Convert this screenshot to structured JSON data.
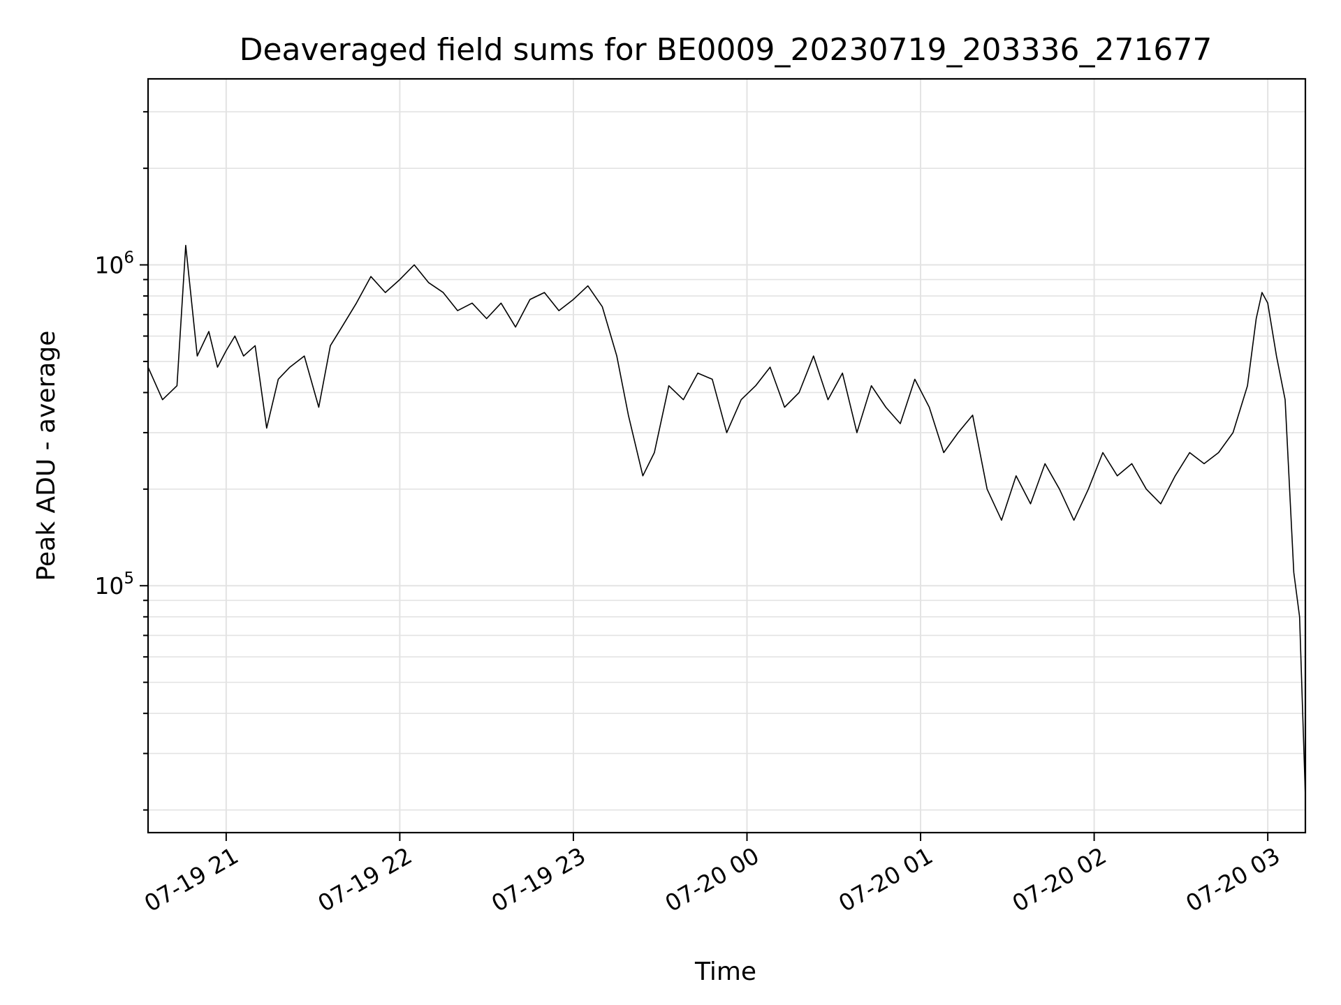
{
  "chart_data": {
    "type": "line",
    "title": "Deaveraged field sums for BE0009_20230719_203336_271677",
    "xlabel": "Time",
    "ylabel": "Peak ADU - average",
    "yscale": "log",
    "xlim": [
      "2023-07-19 20:33",
      "2023-07-20 03:13"
    ],
    "ylim": [
      17000,
      3800000
    ],
    "grid": true,
    "line_color": "#000000",
    "x_ticks": [
      {
        "t": "2023-07-19 21:00",
        "label": "07-19 21"
      },
      {
        "t": "2023-07-19 22:00",
        "label": "07-19 22"
      },
      {
        "t": "2023-07-19 23:00",
        "label": "07-19 23"
      },
      {
        "t": "2023-07-20 00:00",
        "label": "07-20 00"
      },
      {
        "t": "2023-07-20 01:00",
        "label": "07-20 01"
      },
      {
        "t": "2023-07-20 02:00",
        "label": "07-20 02"
      },
      {
        "t": "2023-07-20 03:00",
        "label": "07-20 03"
      }
    ],
    "y_ticks": [
      {
        "value": 100000,
        "base": "10",
        "exp": "5"
      },
      {
        "value": 1000000,
        "base": "10",
        "exp": "6"
      }
    ],
    "series": [
      {
        "x": [
          "2023-07-19 20:33",
          "2023-07-19 20:38",
          "2023-07-19 20:43",
          "2023-07-19 20:46",
          "2023-07-19 20:50",
          "2023-07-19 20:54",
          "2023-07-19 20:57",
          "2023-07-19 21:00",
          "2023-07-19 21:03",
          "2023-07-19 21:06",
          "2023-07-19 21:10",
          "2023-07-19 21:14",
          "2023-07-19 21:18",
          "2023-07-19 21:22",
          "2023-07-19 21:27",
          "2023-07-19 21:32",
          "2023-07-19 21:36",
          "2023-07-19 21:40",
          "2023-07-19 21:45",
          "2023-07-19 21:50",
          "2023-07-19 21:55",
          "2023-07-19 22:00",
          "2023-07-19 22:05",
          "2023-07-19 22:10",
          "2023-07-19 22:15",
          "2023-07-19 22:20",
          "2023-07-19 22:25",
          "2023-07-19 22:30",
          "2023-07-19 22:35",
          "2023-07-19 22:40",
          "2023-07-19 22:45",
          "2023-07-19 22:50",
          "2023-07-19 22:55",
          "2023-07-19 23:00",
          "2023-07-19 23:05",
          "2023-07-19 23:10",
          "2023-07-19 23:15",
          "2023-07-19 23:19",
          "2023-07-19 23:24",
          "2023-07-19 23:28",
          "2023-07-19 23:33",
          "2023-07-19 23:38",
          "2023-07-19 23:43",
          "2023-07-19 23:48",
          "2023-07-19 23:53",
          "2023-07-19 23:58",
          "2023-07-20 00:03",
          "2023-07-20 00:08",
          "2023-07-20 00:13",
          "2023-07-20 00:18",
          "2023-07-20 00:23",
          "2023-07-20 00:28",
          "2023-07-20 00:33",
          "2023-07-20 00:38",
          "2023-07-20 00:43",
          "2023-07-20 00:48",
          "2023-07-20 00:53",
          "2023-07-20 00:58",
          "2023-07-20 01:03",
          "2023-07-20 01:08",
          "2023-07-20 01:13",
          "2023-07-20 01:18",
          "2023-07-20 01:23",
          "2023-07-20 01:28",
          "2023-07-20 01:33",
          "2023-07-20 01:38",
          "2023-07-20 01:43",
          "2023-07-20 01:48",
          "2023-07-20 01:53",
          "2023-07-20 01:58",
          "2023-07-20 02:03",
          "2023-07-20 02:08",
          "2023-07-20 02:13",
          "2023-07-20 02:18",
          "2023-07-20 02:23",
          "2023-07-20 02:28",
          "2023-07-20 02:33",
          "2023-07-20 02:38",
          "2023-07-20 02:43",
          "2023-07-20 02:48",
          "2023-07-20 02:53",
          "2023-07-20 02:56",
          "2023-07-20 02:58",
          "2023-07-20 03:00",
          "2023-07-20 03:03",
          "2023-07-20 03:06",
          "2023-07-20 03:09",
          "2023-07-20 03:11",
          "2023-07-20 03:13"
        ],
        "y": [
          480000,
          380000,
          420000,
          1150000,
          520000,
          620000,
          480000,
          540000,
          600000,
          520000,
          560000,
          310000,
          440000,
          480000,
          520000,
          360000,
          560000,
          640000,
          760000,
          920000,
          820000,
          900000,
          1000000,
          880000,
          820000,
          720000,
          760000,
          680000,
          760000,
          640000,
          780000,
          820000,
          720000,
          780000,
          860000,
          740000,
          520000,
          340000,
          220000,
          260000,
          420000,
          380000,
          460000,
          440000,
          300000,
          380000,
          420000,
          480000,
          360000,
          400000,
          520000,
          380000,
          460000,
          300000,
          420000,
          360000,
          320000,
          440000,
          360000,
          260000,
          300000,
          340000,
          200000,
          160000,
          220000,
          180000,
          240000,
          200000,
          160000,
          200000,
          260000,
          220000,
          240000,
          200000,
          180000,
          220000,
          260000,
          240000,
          260000,
          300000,
          420000,
          680000,
          820000,
          760000,
          520000,
          380000,
          110000,
          80000,
          22000
        ]
      }
    ]
  }
}
